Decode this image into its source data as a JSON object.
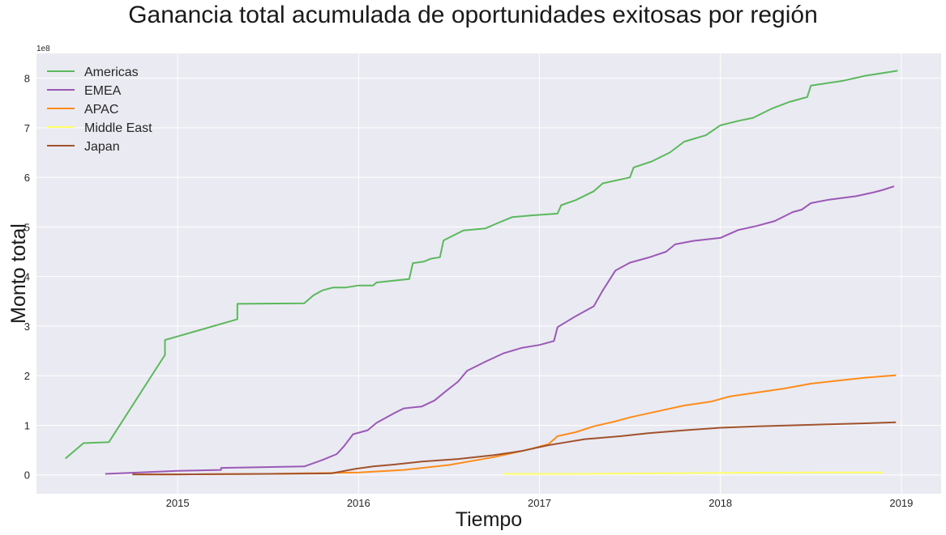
{
  "chart_data": {
    "type": "line",
    "title": "Ganancia total acumulada de oportunidades exitosas por región",
    "xlabel": "Tiempo",
    "ylabel": "Monto total",
    "y_multiplier_label": "1e8",
    "xlim": [
      2014.22,
      2019.22
    ],
    "ylim": [
      -0.38,
      8.5
    ],
    "x_ticks": [
      2015,
      2016,
      2017,
      2018,
      2019
    ],
    "x_tick_labels": [
      "2015",
      "2016",
      "2017",
      "2018",
      "2019"
    ],
    "y_ticks": [
      0,
      1,
      2,
      3,
      4,
      5,
      6,
      7,
      8
    ],
    "y_tick_labels": [
      "0",
      "1",
      "2",
      "3",
      "4",
      "5",
      "6",
      "7",
      "8"
    ],
    "grid": true,
    "legend_position": "upper-left",
    "series": [
      {
        "name": "Americas",
        "color": "#5cb85c",
        "points": [
          [
            2014.38,
            0.33
          ],
          [
            2014.48,
            0.64
          ],
          [
            2014.62,
            0.66
          ],
          [
            2014.93,
            2.42
          ],
          [
            2014.93,
            2.72
          ],
          [
            2015.33,
            3.14
          ],
          [
            2015.33,
            3.45
          ],
          [
            2015.7,
            3.46
          ],
          [
            2015.75,
            3.62
          ],
          [
            2015.8,
            3.72
          ],
          [
            2015.86,
            3.78
          ],
          [
            2015.93,
            3.78
          ],
          [
            2016.0,
            3.82
          ],
          [
            2016.08,
            3.82
          ],
          [
            2016.1,
            3.88
          ],
          [
            2016.2,
            3.92
          ],
          [
            2016.28,
            3.95
          ],
          [
            2016.3,
            4.27
          ],
          [
            2016.36,
            4.3
          ],
          [
            2016.4,
            4.36
          ],
          [
            2016.45,
            4.39
          ],
          [
            2016.47,
            4.73
          ],
          [
            2016.52,
            4.82
          ],
          [
            2016.58,
            4.93
          ],
          [
            2016.7,
            4.97
          ],
          [
            2016.77,
            5.08
          ],
          [
            2016.85,
            5.2
          ],
          [
            2016.95,
            5.23
          ],
          [
            2017.1,
            5.27
          ],
          [
            2017.12,
            5.44
          ],
          [
            2017.2,
            5.54
          ],
          [
            2017.3,
            5.72
          ],
          [
            2017.35,
            5.88
          ],
          [
            2017.5,
            6.0
          ],
          [
            2017.52,
            6.2
          ],
          [
            2017.62,
            6.32
          ],
          [
            2017.72,
            6.5
          ],
          [
            2017.8,
            6.72
          ],
          [
            2017.92,
            6.85
          ],
          [
            2018.0,
            7.05
          ],
          [
            2018.1,
            7.14
          ],
          [
            2018.18,
            7.2
          ],
          [
            2018.28,
            7.38
          ],
          [
            2018.38,
            7.52
          ],
          [
            2018.48,
            7.62
          ],
          [
            2018.5,
            7.85
          ],
          [
            2018.68,
            7.95
          ],
          [
            2018.8,
            8.05
          ],
          [
            2018.98,
            8.15
          ]
        ]
      },
      {
        "name": "EMEA",
        "color": "#9b59b6",
        "points": [
          [
            2014.6,
            0.02
          ],
          [
            2015.0,
            0.08
          ],
          [
            2015.24,
            0.1
          ],
          [
            2015.24,
            0.14
          ],
          [
            2015.7,
            0.17
          ],
          [
            2015.8,
            0.3
          ],
          [
            2015.88,
            0.42
          ],
          [
            2015.92,
            0.58
          ],
          [
            2015.97,
            0.82
          ],
          [
            2016.05,
            0.9
          ],
          [
            2016.1,
            1.05
          ],
          [
            2016.2,
            1.25
          ],
          [
            2016.25,
            1.34
          ],
          [
            2016.35,
            1.38
          ],
          [
            2016.42,
            1.5
          ],
          [
            2016.48,
            1.68
          ],
          [
            2016.55,
            1.88
          ],
          [
            2016.6,
            2.1
          ],
          [
            2016.7,
            2.28
          ],
          [
            2016.8,
            2.45
          ],
          [
            2016.9,
            2.56
          ],
          [
            2017.0,
            2.62
          ],
          [
            2017.08,
            2.7
          ],
          [
            2017.1,
            2.98
          ],
          [
            2017.2,
            3.2
          ],
          [
            2017.3,
            3.4
          ],
          [
            2017.35,
            3.72
          ],
          [
            2017.42,
            4.12
          ],
          [
            2017.5,
            4.28
          ],
          [
            2017.6,
            4.38
          ],
          [
            2017.7,
            4.5
          ],
          [
            2017.75,
            4.65
          ],
          [
            2017.85,
            4.72
          ],
          [
            2018.0,
            4.78
          ],
          [
            2018.1,
            4.94
          ],
          [
            2018.2,
            5.02
          ],
          [
            2018.3,
            5.12
          ],
          [
            2018.4,
            5.3
          ],
          [
            2018.45,
            5.35
          ],
          [
            2018.5,
            5.48
          ],
          [
            2018.6,
            5.55
          ],
          [
            2018.75,
            5.62
          ],
          [
            2018.85,
            5.7
          ],
          [
            2018.9,
            5.75
          ],
          [
            2018.96,
            5.82
          ]
        ]
      },
      {
        "name": "APAC",
        "color": "#ff8c1a",
        "points": [
          [
            2014.75,
            0.01
          ],
          [
            2015.0,
            0.01
          ],
          [
            2015.5,
            0.02
          ],
          [
            2016.0,
            0.05
          ],
          [
            2016.25,
            0.1
          ],
          [
            2016.5,
            0.2
          ],
          [
            2016.75,
            0.36
          ],
          [
            2016.95,
            0.52
          ],
          [
            2017.05,
            0.62
          ],
          [
            2017.1,
            0.78
          ],
          [
            2017.2,
            0.86
          ],
          [
            2017.3,
            0.98
          ],
          [
            2017.42,
            1.08
          ],
          [
            2017.5,
            1.16
          ],
          [
            2017.65,
            1.28
          ],
          [
            2017.8,
            1.4
          ],
          [
            2017.95,
            1.48
          ],
          [
            2018.05,
            1.58
          ],
          [
            2018.2,
            1.66
          ],
          [
            2018.35,
            1.74
          ],
          [
            2018.5,
            1.84
          ],
          [
            2018.65,
            1.9
          ],
          [
            2018.8,
            1.96
          ],
          [
            2018.97,
            2.01
          ]
        ]
      },
      {
        "name": "Middle East",
        "color": "#ffff66",
        "points": [
          [
            2016.8,
            0.02
          ],
          [
            2017.2,
            0.02
          ],
          [
            2017.6,
            0.03
          ],
          [
            2018.0,
            0.04
          ],
          [
            2018.5,
            0.05
          ],
          [
            2018.9,
            0.05
          ]
        ]
      },
      {
        "name": "Japan",
        "color": "#a0522d",
        "points": [
          [
            2014.75,
            0.01
          ],
          [
            2015.0,
            0.01
          ],
          [
            2015.5,
            0.02
          ],
          [
            2015.85,
            0.03
          ],
          [
            2015.98,
            0.12
          ],
          [
            2016.08,
            0.17
          ],
          [
            2016.2,
            0.21
          ],
          [
            2016.35,
            0.27
          ],
          [
            2016.55,
            0.32
          ],
          [
            2016.75,
            0.4
          ],
          [
            2016.9,
            0.48
          ],
          [
            2017.0,
            0.56
          ],
          [
            2017.05,
            0.6
          ],
          [
            2017.15,
            0.66
          ],
          [
            2017.25,
            0.72
          ],
          [
            2017.45,
            0.78
          ],
          [
            2017.6,
            0.84
          ],
          [
            2017.8,
            0.9
          ],
          [
            2018.0,
            0.95
          ],
          [
            2018.2,
            0.98
          ],
          [
            2018.4,
            1.0
          ],
          [
            2018.6,
            1.02
          ],
          [
            2018.8,
            1.04
          ],
          [
            2018.97,
            1.06
          ]
        ]
      }
    ]
  }
}
